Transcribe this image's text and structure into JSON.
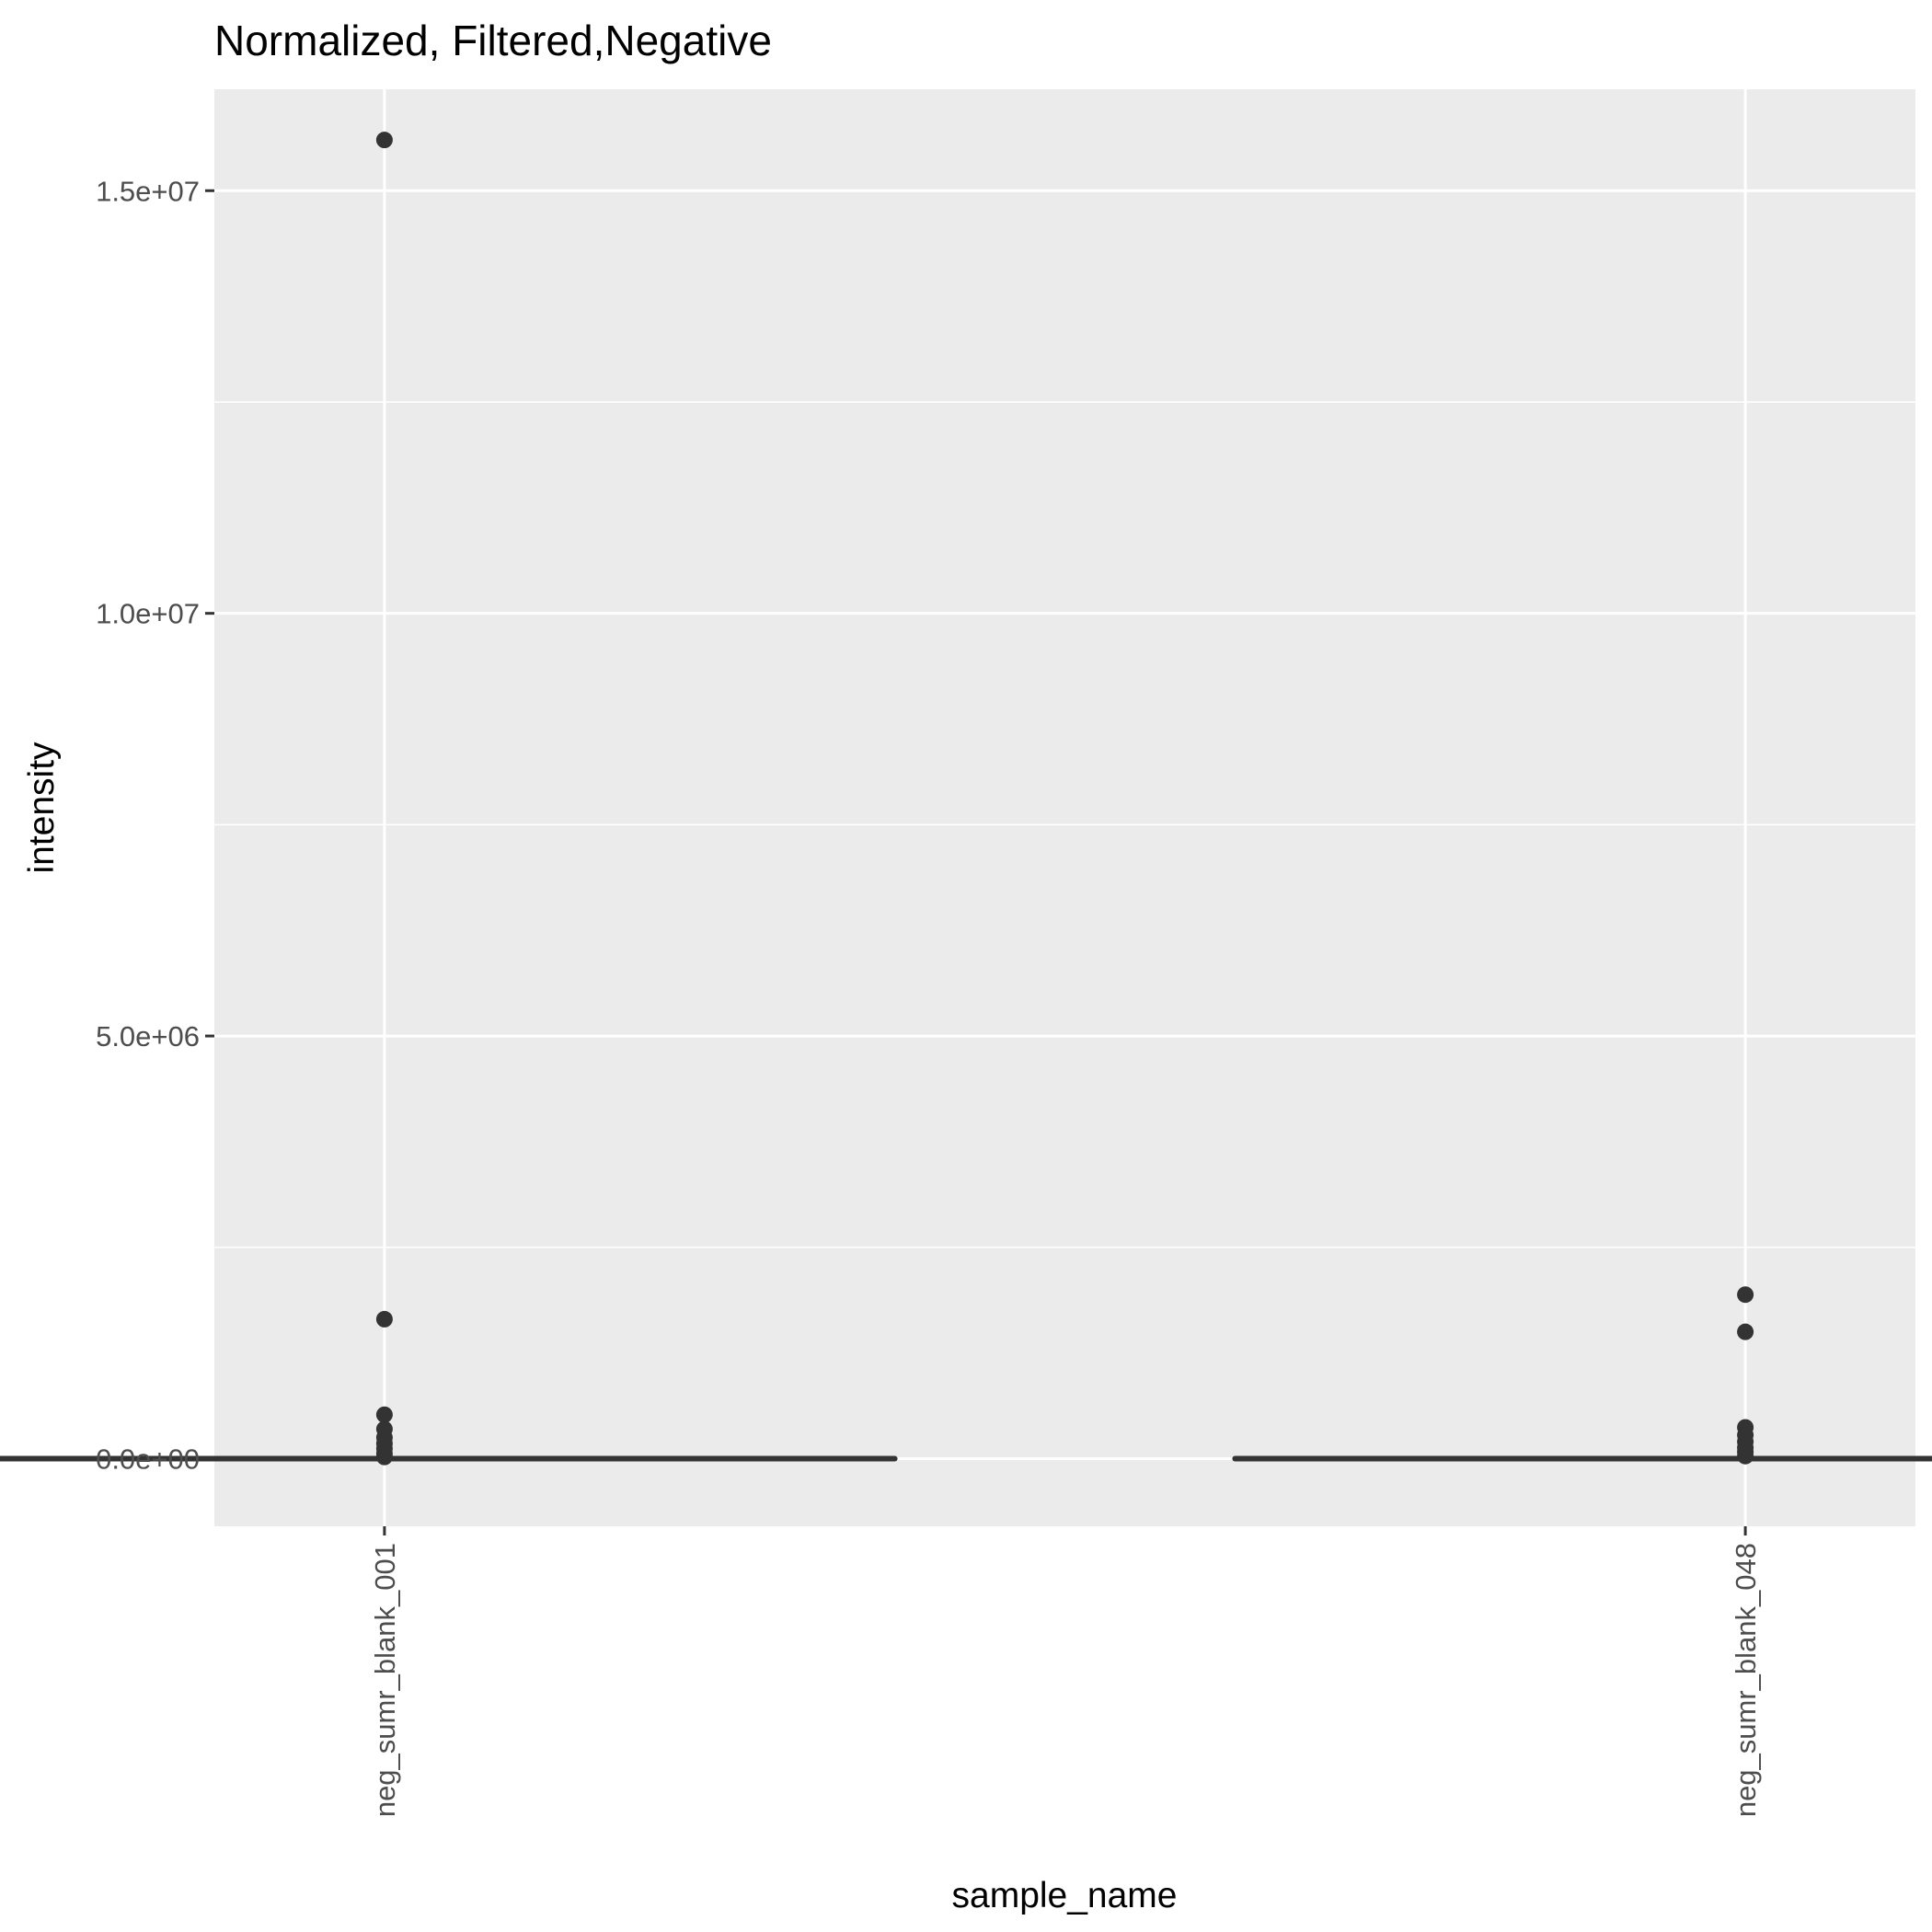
{
  "chart_data": {
    "type": "box",
    "title": "Normalized, Filtered,Negative",
    "xlabel": "sample_name",
    "ylabel": "intensity",
    "categories": [
      "neg_sumr_blank_001",
      "neg_sumr_blank_048"
    ],
    "ylim": [
      -800000,
      16200000
    ],
    "yticks": [
      {
        "value": 0,
        "label": "0.0e+00"
      },
      {
        "value": 5000000,
        "label": "5.0e+06"
      },
      {
        "value": 10000000,
        "label": "1.0e+07"
      },
      {
        "value": 15000000,
        "label": "1.5e+07"
      }
    ],
    "y_minor_ticks": [
      2500000,
      7500000,
      12500000
    ],
    "boxes": [
      {
        "category": "neg_sumr_blank_001",
        "q1": 0,
        "median": 0,
        "q3": 0,
        "whisker_low": 0,
        "whisker_high": 0,
        "outliers": [
          15600000,
          1650000,
          520000,
          350000,
          250000,
          180000,
          120000,
          60000,
          20000
        ]
      },
      {
        "category": "neg_sumr_blank_048",
        "q1": 0,
        "median": 0,
        "q3": 0,
        "whisker_low": 0,
        "whisker_high": 0,
        "outliers": [
          1940000,
          1500000,
          370000,
          280000,
          200000,
          130000,
          80000,
          30000
        ]
      }
    ],
    "grid": true,
    "colors": {
      "panel": "#ebebeb",
      "grid": "#ffffff",
      "mark": "#333333"
    }
  }
}
